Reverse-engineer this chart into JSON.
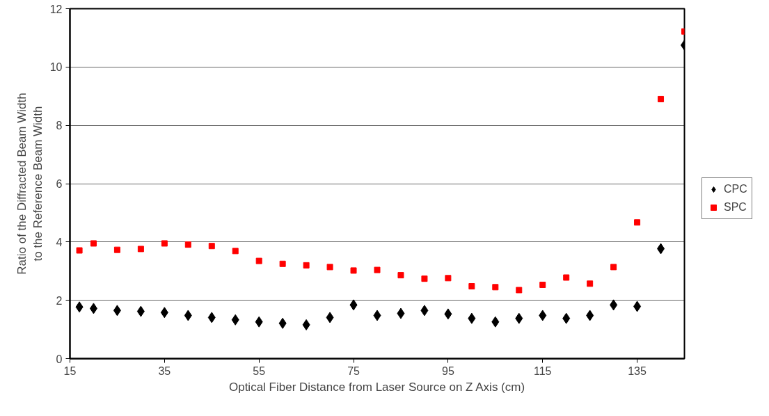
{
  "chart_data": {
    "type": "scatter",
    "xlabel": "Optical Fiber Distance from Laser Source on Z Axis (cm)",
    "ylabel": "Ratio of the Diffracted Beam Width\nto the Reference Beam Width",
    "x": [
      17,
      20,
      25,
      30,
      35,
      40,
      45,
      50,
      55,
      60,
      65,
      70,
      75,
      80,
      85,
      90,
      95,
      100,
      105,
      110,
      115,
      120,
      125,
      130,
      135,
      140,
      145
    ],
    "series": [
      {
        "name": "CPC",
        "color": "#000000",
        "marker": "diamond",
        "values": [
          1.77,
          1.72,
          1.65,
          1.62,
          1.58,
          1.48,
          1.41,
          1.33,
          1.26,
          1.21,
          1.16,
          1.41,
          1.84,
          1.48,
          1.55,
          1.65,
          1.53,
          1.38,
          1.26,
          1.38,
          1.48,
          1.38,
          1.48,
          1.84,
          1.79,
          3.77,
          10.75
        ]
      },
      {
        "name": "SPC",
        "color": "#ff0000",
        "marker": "square",
        "values": [
          3.71,
          3.95,
          3.73,
          3.76,
          3.95,
          3.91,
          3.86,
          3.69,
          3.35,
          3.25,
          3.2,
          3.14,
          3.02,
          3.04,
          2.86,
          2.74,
          2.76,
          2.48,
          2.45,
          2.35,
          2.53,
          2.78,
          2.57,
          3.14,
          4.67,
          8.9,
          11.22
        ]
      }
    ],
    "xlim": [
      15,
      145
    ],
    "xticks": [
      15,
      35,
      55,
      75,
      95,
      115,
      135
    ],
    "ylim": [
      0,
      12
    ],
    "yticks": [
      0,
      2,
      4,
      6,
      8,
      10,
      12
    ],
    "grid": "y",
    "legend": "right"
  }
}
